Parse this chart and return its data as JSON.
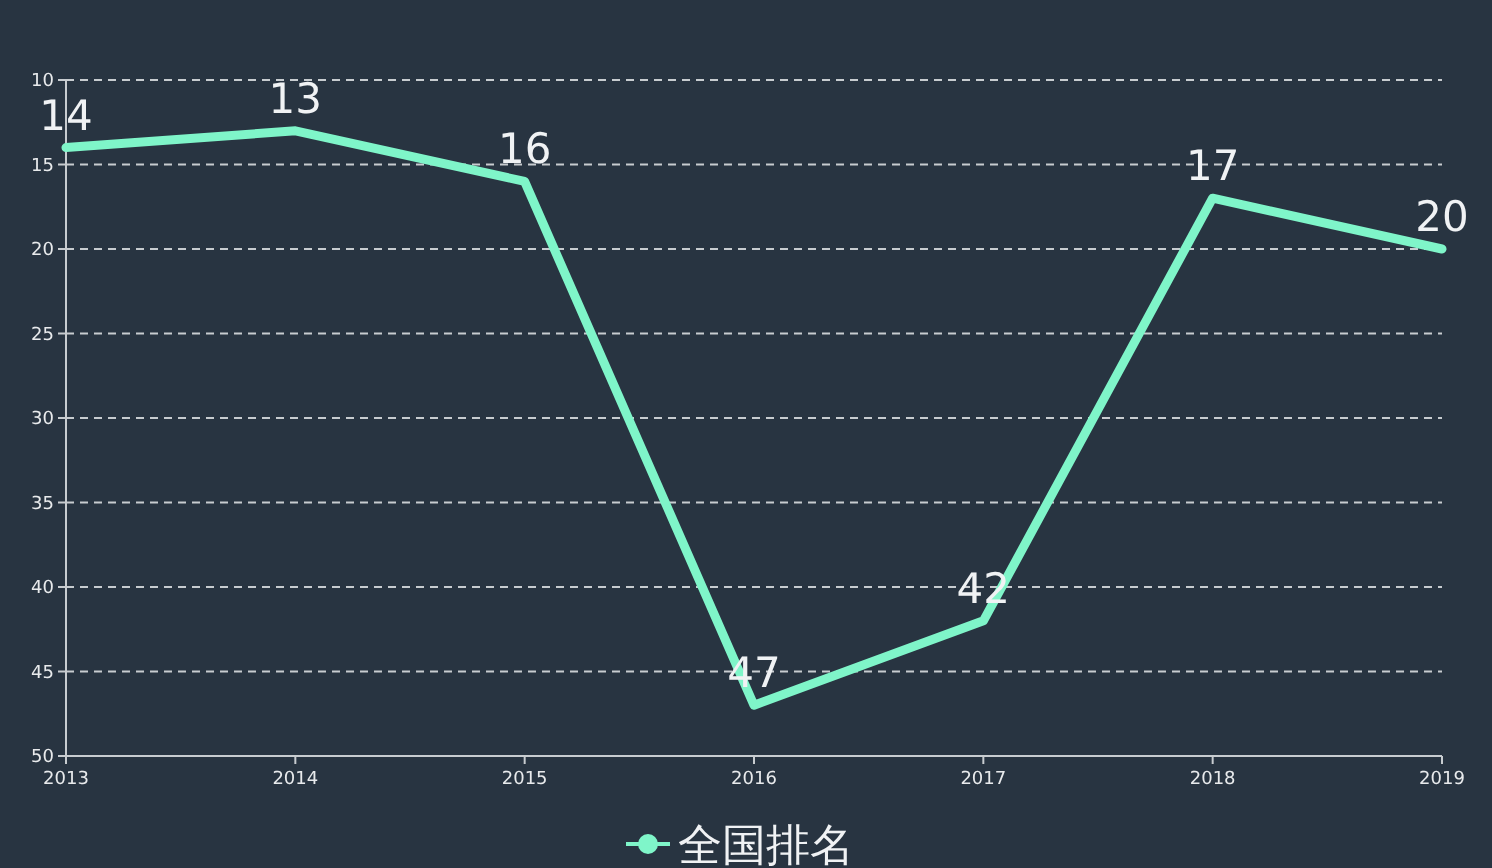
{
  "chart_data": {
    "type": "line",
    "categories": [
      "2013",
      "2014",
      "2015",
      "2016",
      "2017",
      "2018",
      "2019"
    ],
    "series": [
      {
        "name": "全国排名",
        "color": "#7ff5c9",
        "values": [
          14,
          13,
          16,
          47,
          42,
          17,
          20
        ]
      }
    ],
    "ylim": [
      50,
      10
    ],
    "yticks": [
      10,
      15,
      20,
      25,
      30,
      35,
      40,
      45,
      50
    ],
    "grid": "y",
    "legend": "bottom",
    "data_labels": true
  }
}
